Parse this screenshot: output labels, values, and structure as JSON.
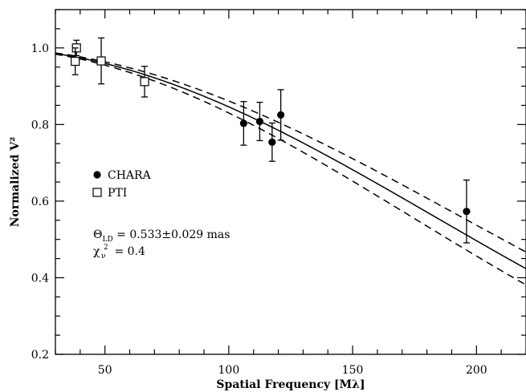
{
  "chart_data": {
    "type": "scatter",
    "title": "",
    "xlabel": "Spatial Frequency [Mλ]",
    "ylabel": "Normalized V²",
    "xlim": [
      30,
      220
    ],
    "ylim": [
      0.2,
      1.1
    ],
    "x_ticks": [
      50,
      100,
      150,
      200
    ],
    "y_ticks": [
      0.2,
      0.4,
      0.6,
      0.8,
      1.0
    ],
    "x_tick_labels": [
      "50",
      "100",
      "150",
      "200"
    ],
    "y_tick_labels": [
      "0.2",
      "0.4",
      "0.6",
      "0.8",
      "1.0"
    ],
    "grid": false,
    "legend_position": "center-left",
    "series": [
      {
        "name": "CHARA",
        "marker": "filled-circle",
        "points": [
          {
            "x": 106,
            "y": 0.803,
            "err": 0.057
          },
          {
            "x": 112.5,
            "y": 0.808,
            "err": 0.05
          },
          {
            "x": 117.5,
            "y": 0.754,
            "err": 0.05
          },
          {
            "x": 121,
            "y": 0.825,
            "err": 0.066
          },
          {
            "x": 196,
            "y": 0.573,
            "err": 0.082
          }
        ]
      },
      {
        "name": "PTI",
        "marker": "open-square",
        "points": [
          {
            "x": 38.5,
            "y": 1.0,
            "err": 0.02
          },
          {
            "x": 38,
            "y": 0.965,
            "err": 0.035
          },
          {
            "x": 48.5,
            "y": 0.966,
            "err": 0.06
          },
          {
            "x": 66,
            "y": 0.912,
            "err": 0.04
          }
        ]
      }
    ],
    "model": {
      "curve": "uniform-disk",
      "theta_mas": 0.533,
      "theta_err_mas": 0.029,
      "styles": {
        "best_fit": "solid",
        "bounds": "dashed"
      }
    },
    "annotations": {
      "theta_symbol": "Θ",
      "theta_subscript": "LD",
      "theta_text": " = 0.533±0.029 mas",
      "chi_symbol": "χ",
      "chi_superscript": "2",
      "chi_subscript": "ν",
      "chi_text": " = 0.4"
    }
  }
}
